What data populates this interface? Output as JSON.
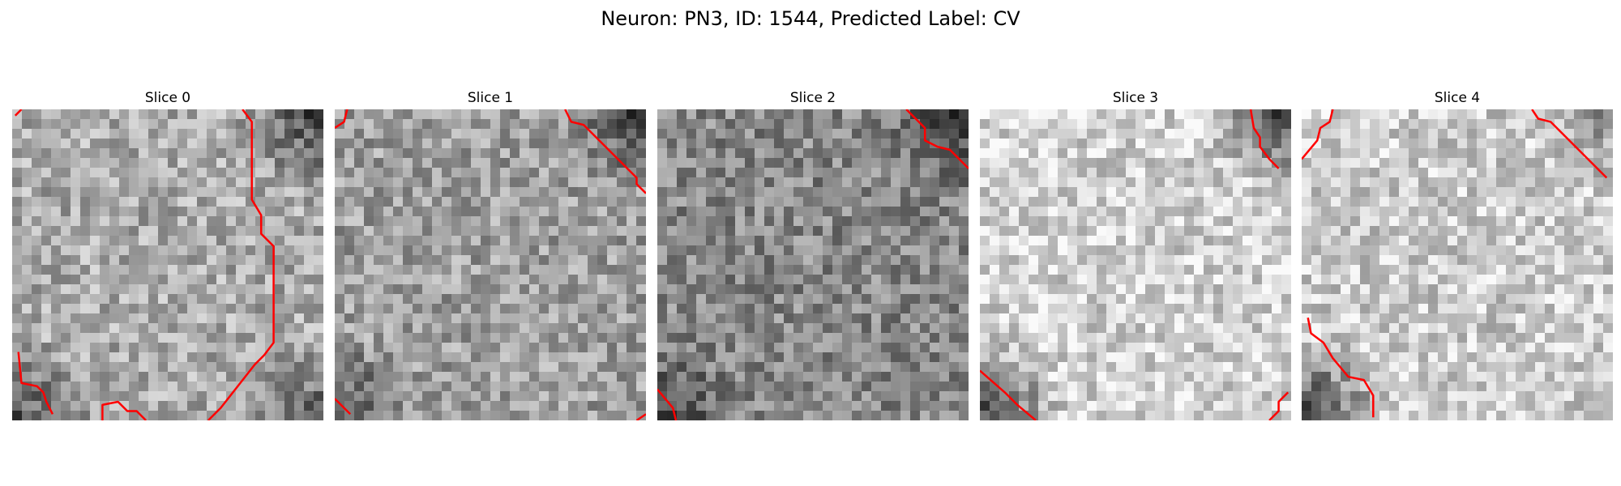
{
  "figure": {
    "title": "Neuron: PN3, ID: 1544, Predicted Label: CV"
  },
  "slices": [
    {
      "title": "Slice 0",
      "mean": 0.67,
      "dark_corners": {
        "tr": 0.45,
        "bl": 0.35,
        "br": 0.3
      },
      "contours": [
        [
          [
            0.01,
            0.02
          ],
          [
            0.03,
            0.0
          ]
        ],
        [
          [
            0.74,
            0.0
          ],
          [
            0.77,
            0.04
          ],
          [
            0.77,
            0.29
          ],
          [
            0.8,
            0.34
          ],
          [
            0.8,
            0.4
          ],
          [
            0.84,
            0.44
          ],
          [
            0.84,
            0.75
          ],
          [
            0.81,
            0.79
          ],
          [
            0.78,
            0.82
          ],
          [
            0.67,
            0.96
          ],
          [
            0.63,
            1.0
          ]
        ],
        [
          [
            0.02,
            0.78
          ],
          [
            0.03,
            0.88
          ],
          [
            0.08,
            0.89
          ],
          [
            0.1,
            0.91
          ],
          [
            0.11,
            0.94
          ],
          [
            0.13,
            0.98
          ]
        ],
        [
          [
            0.29,
            1.0
          ],
          [
            0.29,
            0.95
          ],
          [
            0.34,
            0.94
          ],
          [
            0.37,
            0.97
          ],
          [
            0.4,
            0.97
          ],
          [
            0.43,
            1.0
          ]
        ]
      ]
    },
    {
      "title": "Slice 1",
      "mean": 0.62,
      "dark_corners": {
        "tr": 0.4,
        "bl": 0.35
      },
      "contours": [
        [
          [
            0.0,
            0.06
          ],
          [
            0.03,
            0.04
          ],
          [
            0.04,
            0.0
          ]
        ],
        [
          [
            0.74,
            0.0
          ],
          [
            0.76,
            0.04
          ],
          [
            0.8,
            0.05
          ],
          [
            0.97,
            0.22
          ],
          [
            0.97,
            0.24
          ],
          [
            1.0,
            0.27
          ]
        ],
        [
          [
            0.0,
            0.93
          ],
          [
            0.05,
            0.98
          ]
        ],
        [
          [
            0.97,
            1.0
          ],
          [
            1.0,
            0.98
          ]
        ]
      ]
    },
    {
      "title": "Slice 2",
      "mean": 0.53,
      "dark_corners": {
        "tr": 0.3,
        "bl": 0.3
      },
      "contours": [
        [
          [
            0.8,
            0.0
          ],
          [
            0.86,
            0.06
          ],
          [
            0.86,
            0.1
          ],
          [
            0.9,
            0.12
          ],
          [
            0.94,
            0.13
          ],
          [
            0.98,
            0.17
          ],
          [
            1.0,
            0.19
          ]
        ],
        [
          [
            0.0,
            0.9
          ],
          [
            0.05,
            0.96
          ],
          [
            0.06,
            1.0
          ]
        ]
      ]
    },
    {
      "title": "Slice 3",
      "mean": 0.82,
      "dark_corners": {
        "tr": 0.6,
        "bl": 0.55
      },
      "contours": [
        [
          [
            0.87,
            0.0
          ],
          [
            0.88,
            0.06
          ],
          [
            0.9,
            0.09
          ],
          [
            0.9,
            0.12
          ],
          [
            0.93,
            0.16
          ],
          [
            0.96,
            0.19
          ]
        ],
        [
          [
            0.0,
            0.84
          ],
          [
            0.08,
            0.91
          ],
          [
            0.12,
            0.95
          ],
          [
            0.18,
            1.0
          ]
        ],
        [
          [
            0.93,
            1.0
          ],
          [
            0.96,
            0.97
          ],
          [
            0.96,
            0.94
          ],
          [
            0.99,
            0.91
          ]
        ]
      ]
    },
    {
      "title": "Slice 4",
      "mean": 0.8,
      "dark_corners": {
        "bl": 0.6,
        "tr": 0.25
      },
      "contours": [
        [
          [
            0.0,
            0.16
          ],
          [
            0.05,
            0.1
          ],
          [
            0.06,
            0.06
          ],
          [
            0.09,
            0.04
          ],
          [
            0.1,
            0.0
          ]
        ],
        [
          [
            0.74,
            0.0
          ],
          [
            0.76,
            0.03
          ],
          [
            0.8,
            0.04
          ],
          [
            0.98,
            0.22
          ]
        ],
        [
          [
            0.02,
            0.67
          ],
          [
            0.03,
            0.72
          ],
          [
            0.07,
            0.75
          ],
          [
            0.1,
            0.8
          ],
          [
            0.15,
            0.86
          ],
          [
            0.2,
            0.87
          ],
          [
            0.23,
            0.92
          ],
          [
            0.23,
            0.99
          ]
        ]
      ]
    }
  ]
}
